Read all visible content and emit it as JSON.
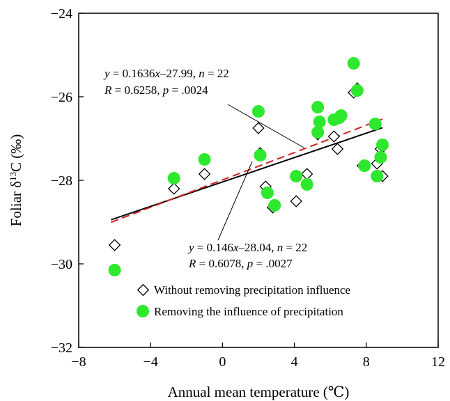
{
  "chart_data": {
    "type": "scatter",
    "xlabel": "Annual mean temperature (℃)",
    "ylabel": {
      "pre": "Foliar δ",
      "sup": "13",
      "post": "C (‰)"
    },
    "xlim": [
      -8,
      12
    ],
    "ylim": [
      -32,
      -24
    ],
    "xticks": [
      -8,
      -4,
      0,
      4,
      8,
      12
    ],
    "yticks": [
      -32,
      -30,
      -28,
      -26,
      -24
    ],
    "grid": false,
    "legend_position": "bottom-center inside",
    "series": [
      {
        "name": "Without removing precipitation influence",
        "marker": "diamond-open",
        "color": "#000000",
        "points": [
          [
            -6.0,
            -29.55
          ],
          [
            -2.7,
            -28.2
          ],
          [
            -1.0,
            -27.85
          ],
          [
            2.0,
            -26.75
          ],
          [
            2.1,
            -27.35
          ],
          [
            2.4,
            -28.15
          ],
          [
            2.8,
            -28.65
          ],
          [
            4.1,
            -28.5
          ],
          [
            4.7,
            -27.85
          ],
          [
            5.3,
            -26.25
          ],
          [
            5.3,
            -26.9
          ],
          [
            6.2,
            -26.95
          ],
          [
            6.4,
            -27.25
          ],
          [
            6.6,
            -26.45
          ],
          [
            7.3,
            -25.9
          ],
          [
            7.5,
            -25.8
          ],
          [
            7.8,
            -27.65
          ],
          [
            8.5,
            -26.65
          ],
          [
            8.6,
            -27.6
          ],
          [
            8.8,
            -27.25
          ],
          [
            8.9,
            -27.9
          ],
          [
            8.9,
            -27.2
          ]
        ]
      },
      {
        "name": "Removing the influence of precipitation",
        "marker": "circle-filled",
        "color": "#2ee82e",
        "points": [
          [
            -6.0,
            -30.15
          ],
          [
            -2.7,
            -27.95
          ],
          [
            -1.0,
            -27.5
          ],
          [
            2.0,
            -26.35
          ],
          [
            2.1,
            -27.4
          ],
          [
            2.5,
            -28.3
          ],
          [
            2.9,
            -28.6
          ],
          [
            4.1,
            -27.9
          ],
          [
            4.7,
            -28.1
          ],
          [
            5.3,
            -26.25
          ],
          [
            5.4,
            -26.6
          ],
          [
            5.3,
            -26.85
          ],
          [
            6.2,
            -26.55
          ],
          [
            6.5,
            -26.5
          ],
          [
            6.6,
            -26.45
          ],
          [
            7.3,
            -25.2
          ],
          [
            7.5,
            -25.85
          ],
          [
            7.9,
            -27.65
          ],
          [
            8.6,
            -27.9
          ],
          [
            8.8,
            -27.45
          ],
          [
            8.9,
            -27.15
          ],
          [
            8.5,
            -26.65
          ]
        ]
      }
    ],
    "fits": [
      {
        "slope": 0.146,
        "intercept": -28.04,
        "x_range": [
          -6.2,
          8.9
        ],
        "style": "solid",
        "color": "#000000"
      },
      {
        "slope": 0.1636,
        "intercept": -27.99,
        "x_range": [
          -6.2,
          8.9
        ],
        "style": "dashed",
        "color": "#d42020"
      }
    ],
    "annotations": [
      {
        "line1": {
          "a": "y",
          "b": " = 0.1636",
          "c": "x",
          "d": "–27.99, ",
          "e": "n",
          "f": " = 22"
        },
        "line2": {
          "a": "R",
          "b": " = 0.6258,  ",
          "c": "p",
          "d": " = .0024"
        }
      },
      {
        "line1": {
          "a": "y",
          "b": " = 0.146",
          "c": "x",
          "d": "–28.04, ",
          "e": "n",
          "f": " = 22"
        },
        "line2": {
          "a": "R",
          "b": " = 0.6078,  ",
          "c": "p",
          "d": " = .0027"
        }
      }
    ]
  }
}
